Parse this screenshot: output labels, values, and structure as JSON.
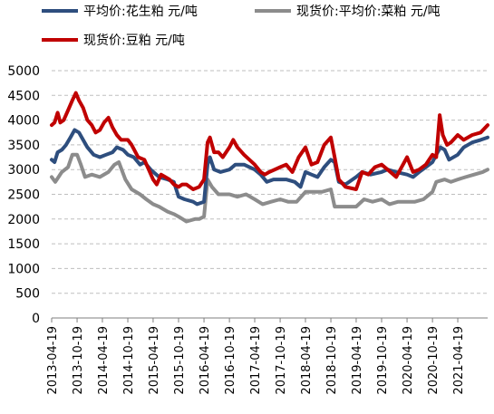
{
  "chart_data": {
    "type": "line",
    "title": "",
    "xlabel": "",
    "ylabel": "",
    "ylim": [
      0,
      5000
    ],
    "yticks": [
      0,
      500,
      1000,
      1500,
      2000,
      2500,
      3000,
      3500,
      4000,
      4500,
      5000
    ],
    "xlim": [
      "2013-04-19",
      "2021-11-20"
    ],
    "xticks": [
      "2013-04-19",
      "2013-10-19",
      "2014-04-19",
      "2014-10-19",
      "2015-04-19",
      "2015-10-19",
      "2016-04-19",
      "2016-10-19",
      "2017-04-19",
      "2017-10-19",
      "2018-04-19",
      "2018-10-19",
      "2019-04-19",
      "2019-10-19",
      "2020-04-19",
      "2020-10-19",
      "2021-04-19"
    ],
    "grid": "horizontal dashed",
    "legend_position": "top",
    "series": [
      {
        "name": "平均价:花生粕 元/吨",
        "color": "#2e4e7e",
        "points": [
          [
            "2013-04-19",
            3200
          ],
          [
            "2013-05-10",
            3150
          ],
          [
            "2013-06-01",
            3350
          ],
          [
            "2013-07-01",
            3400
          ],
          [
            "2013-08-01",
            3500
          ],
          [
            "2013-09-01",
            3650
          ],
          [
            "2013-10-01",
            3800
          ],
          [
            "2013-11-01",
            3750
          ],
          [
            "2013-12-01",
            3600
          ],
          [
            "2014-01-01",
            3450
          ],
          [
            "2014-02-15",
            3300
          ],
          [
            "2014-04-01",
            3250
          ],
          [
            "2014-05-15",
            3300
          ],
          [
            "2014-07-01",
            3350
          ],
          [
            "2014-08-01",
            3450
          ],
          [
            "2014-09-15",
            3400
          ],
          [
            "2014-10-19",
            3300
          ],
          [
            "2014-12-01",
            3250
          ],
          [
            "2015-01-15",
            3100
          ],
          [
            "2015-02-15",
            3150
          ],
          [
            "2015-04-01",
            3000
          ],
          [
            "2015-06-01",
            2850
          ],
          [
            "2015-08-01",
            2800
          ],
          [
            "2015-09-15",
            2750
          ],
          [
            "2015-10-19",
            2450
          ],
          [
            "2015-12-01",
            2400
          ],
          [
            "2016-02-01",
            2350
          ],
          [
            "2016-03-01",
            2300
          ],
          [
            "2016-04-19",
            2350
          ],
          [
            "2016-05-15",
            3100
          ],
          [
            "2016-06-01",
            3250
          ],
          [
            "2016-07-01",
            3000
          ],
          [
            "2016-08-15",
            2950
          ],
          [
            "2016-10-19",
            3000
          ],
          [
            "2016-12-01",
            3100
          ],
          [
            "2017-02-01",
            3100
          ],
          [
            "2017-04-19",
            3000
          ],
          [
            "2017-06-01",
            2900
          ],
          [
            "2017-07-15",
            2750
          ],
          [
            "2017-09-01",
            2800
          ],
          [
            "2017-10-19",
            2800
          ],
          [
            "2017-12-01",
            2800
          ],
          [
            "2018-02-01",
            2750
          ],
          [
            "2018-03-15",
            2650
          ],
          [
            "2018-04-19",
            2950
          ],
          [
            "2018-06-01",
            2900
          ],
          [
            "2018-07-15",
            2850
          ],
          [
            "2018-09-01",
            3050
          ],
          [
            "2018-10-19",
            3200
          ],
          [
            "2018-11-15",
            3150
          ],
          [
            "2018-12-15",
            2750
          ],
          [
            "2019-02-01",
            2700
          ],
          [
            "2019-04-19",
            2850
          ],
          [
            "2019-06-01",
            2950
          ],
          [
            "2019-08-01",
            2900
          ],
          [
            "2019-10-19",
            2950
          ],
          [
            "2019-12-01",
            3000
          ],
          [
            "2020-02-01",
            2950
          ],
          [
            "2020-04-19",
            2900
          ],
          [
            "2020-06-01",
            2850
          ],
          [
            "2020-07-15",
            2950
          ],
          [
            "2020-09-01",
            3050
          ],
          [
            "2020-10-19",
            3150
          ],
          [
            "2020-11-15",
            3300
          ],
          [
            "2020-12-15",
            3450
          ],
          [
            "2021-01-15",
            3400
          ],
          [
            "2021-02-15",
            3200
          ],
          [
            "2021-04-19",
            3300
          ],
          [
            "2021-06-01",
            3450
          ],
          [
            "2021-08-01",
            3550
          ],
          [
            "2021-10-01",
            3600
          ],
          [
            "2021-11-20",
            3650
          ]
        ]
      },
      {
        "name": "现货价:平均价:菜粕 元/吨",
        "color": "#8c8c8c",
        "points": [
          [
            "2013-04-19",
            2850
          ],
          [
            "2013-05-15",
            2750
          ],
          [
            "2013-07-01",
            2950
          ],
          [
            "2013-08-15",
            3050
          ],
          [
            "2013-09-15",
            3300
          ],
          [
            "2013-10-19",
            3300
          ],
          [
            "2013-11-15",
            3100
          ],
          [
            "2013-12-15",
            2850
          ],
          [
            "2014-02-01",
            2900
          ],
          [
            "2014-04-01",
            2850
          ],
          [
            "2014-06-01",
            2950
          ],
          [
            "2014-07-15",
            3100
          ],
          [
            "2014-08-15",
            3150
          ],
          [
            "2014-10-01",
            2800
          ],
          [
            "2014-11-15",
            2600
          ],
          [
            "2015-01-15",
            2500
          ],
          [
            "2015-03-01",
            2400
          ],
          [
            "2015-04-19",
            2300
          ],
          [
            "2015-06-01",
            2250
          ],
          [
            "2015-08-01",
            2150
          ],
          [
            "2015-09-15",
            2100
          ],
          [
            "2015-10-19",
            2050
          ],
          [
            "2015-12-15",
            1950
          ],
          [
            "2016-02-15",
            2000
          ],
          [
            "2016-03-15",
            2000
          ],
          [
            "2016-04-19",
            2050
          ],
          [
            "2016-05-15",
            2800
          ],
          [
            "2016-06-15",
            2650
          ],
          [
            "2016-08-01",
            2500
          ],
          [
            "2016-10-19",
            2500
          ],
          [
            "2016-12-15",
            2450
          ],
          [
            "2017-02-15",
            2500
          ],
          [
            "2017-04-19",
            2400
          ],
          [
            "2017-06-15",
            2300
          ],
          [
            "2017-08-15",
            2350
          ],
          [
            "2017-10-19",
            2400
          ],
          [
            "2017-12-15",
            2350
          ],
          [
            "2018-02-15",
            2350
          ],
          [
            "2018-04-19",
            2550
          ],
          [
            "2018-06-15",
            2550
          ],
          [
            "2018-08-15",
            2550
          ],
          [
            "2018-10-19",
            2600
          ],
          [
            "2018-11-15",
            2250
          ],
          [
            "2019-01-15",
            2250
          ],
          [
            "2019-03-15",
            2250
          ],
          [
            "2019-04-19",
            2250
          ],
          [
            "2019-06-15",
            2400
          ],
          [
            "2019-08-15",
            2350
          ],
          [
            "2019-10-19",
            2400
          ],
          [
            "2019-12-15",
            2300
          ],
          [
            "2020-02-15",
            2350
          ],
          [
            "2020-04-19",
            2350
          ],
          [
            "2020-06-15",
            2350
          ],
          [
            "2020-08-15",
            2400
          ],
          [
            "2020-10-19",
            2550
          ],
          [
            "2020-11-15",
            2750
          ],
          [
            "2021-01-15",
            2800
          ],
          [
            "2021-03-01",
            2750
          ],
          [
            "2021-04-19",
            2800
          ],
          [
            "2021-06-15",
            2850
          ],
          [
            "2021-08-15",
            2900
          ],
          [
            "2021-10-15",
            2950
          ],
          [
            "2021-11-20",
            3000
          ]
        ]
      },
      {
        "name": "现货价:豆粕 元/吨",
        "color": "#c00000",
        "points": [
          [
            "2013-04-19",
            3900
          ],
          [
            "2013-05-10",
            3950
          ],
          [
            "2013-06-01",
            4150
          ],
          [
            "2013-06-20",
            3950
          ],
          [
            "2013-07-15",
            4000
          ],
          [
            "2013-08-15",
            4200
          ],
          [
            "2013-09-15",
            4400
          ],
          [
            "2013-10-10",
            4550
          ],
          [
            "2013-11-01",
            4400
          ],
          [
            "2013-12-01",
            4250
          ],
          [
            "2014-01-01",
            4000
          ],
          [
            "2014-02-01",
            3900
          ],
          [
            "2014-03-01",
            3750
          ],
          [
            "2014-04-01",
            3800
          ],
          [
            "2014-05-01",
            3950
          ],
          [
            "2014-06-01",
            4050
          ],
          [
            "2014-07-01",
            3850
          ],
          [
            "2014-08-01",
            3700
          ],
          [
            "2014-09-01",
            3600
          ],
          [
            "2014-10-19",
            3600
          ],
          [
            "2014-11-15",
            3500
          ],
          [
            "2015-01-01",
            3250
          ],
          [
            "2015-02-15",
            3200
          ],
          [
            "2015-04-19",
            2800
          ],
          [
            "2015-05-15",
            2700
          ],
          [
            "2015-06-15",
            2900
          ],
          [
            "2015-07-15",
            2850
          ],
          [
            "2015-08-15",
            2800
          ],
          [
            "2015-09-15",
            2700
          ],
          [
            "2015-10-19",
            2650
          ],
          [
            "2015-11-15",
            2700
          ],
          [
            "2015-12-15",
            2700
          ],
          [
            "2016-02-01",
            2600
          ],
          [
            "2016-03-15",
            2650
          ],
          [
            "2016-04-19",
            2800
          ],
          [
            "2016-05-15",
            3550
          ],
          [
            "2016-06-01",
            3650
          ],
          [
            "2016-07-01",
            3350
          ],
          [
            "2016-08-01",
            3350
          ],
          [
            "2016-09-01",
            3250
          ],
          [
            "2016-10-19",
            3450
          ],
          [
            "2016-11-15",
            3600
          ],
          [
            "2016-12-15",
            3450
          ],
          [
            "2017-02-01",
            3300
          ],
          [
            "2017-04-19",
            3100
          ],
          [
            "2017-06-01",
            2950
          ],
          [
            "2017-07-01",
            2900
          ],
          [
            "2017-08-01",
            2950
          ],
          [
            "2017-10-19",
            3050
          ],
          [
            "2017-12-01",
            3100
          ],
          [
            "2018-01-15",
            2950
          ],
          [
            "2018-03-01",
            3250
          ],
          [
            "2018-04-19",
            3450
          ],
          [
            "2018-06-01",
            3100
          ],
          [
            "2018-07-15",
            3150
          ],
          [
            "2018-09-01",
            3500
          ],
          [
            "2018-10-19",
            3650
          ],
          [
            "2018-11-15",
            3250
          ],
          [
            "2018-12-15",
            2800
          ],
          [
            "2019-02-01",
            2650
          ],
          [
            "2019-04-19",
            2600
          ],
          [
            "2019-06-01",
            2950
          ],
          [
            "2019-07-15",
            2900
          ],
          [
            "2019-09-01",
            3050
          ],
          [
            "2019-10-19",
            3100
          ],
          [
            "2019-12-01",
            3000
          ],
          [
            "2020-02-01",
            2850
          ],
          [
            "2020-03-01",
            3000
          ],
          [
            "2020-04-19",
            3250
          ],
          [
            "2020-06-01",
            2950
          ],
          [
            "2020-07-15",
            3000
          ],
          [
            "2020-09-01",
            3100
          ],
          [
            "2020-10-19",
            3300
          ],
          [
            "2020-11-15",
            3250
          ],
          [
            "2020-12-10",
            4100
          ],
          [
            "2021-01-01",
            3700
          ],
          [
            "2021-02-01",
            3500
          ],
          [
            "2021-03-01",
            3550
          ],
          [
            "2021-04-19",
            3700
          ],
          [
            "2021-06-01",
            3600
          ],
          [
            "2021-08-01",
            3700
          ],
          [
            "2021-10-01",
            3750
          ],
          [
            "2021-11-20",
            3900
          ]
        ]
      }
    ]
  }
}
